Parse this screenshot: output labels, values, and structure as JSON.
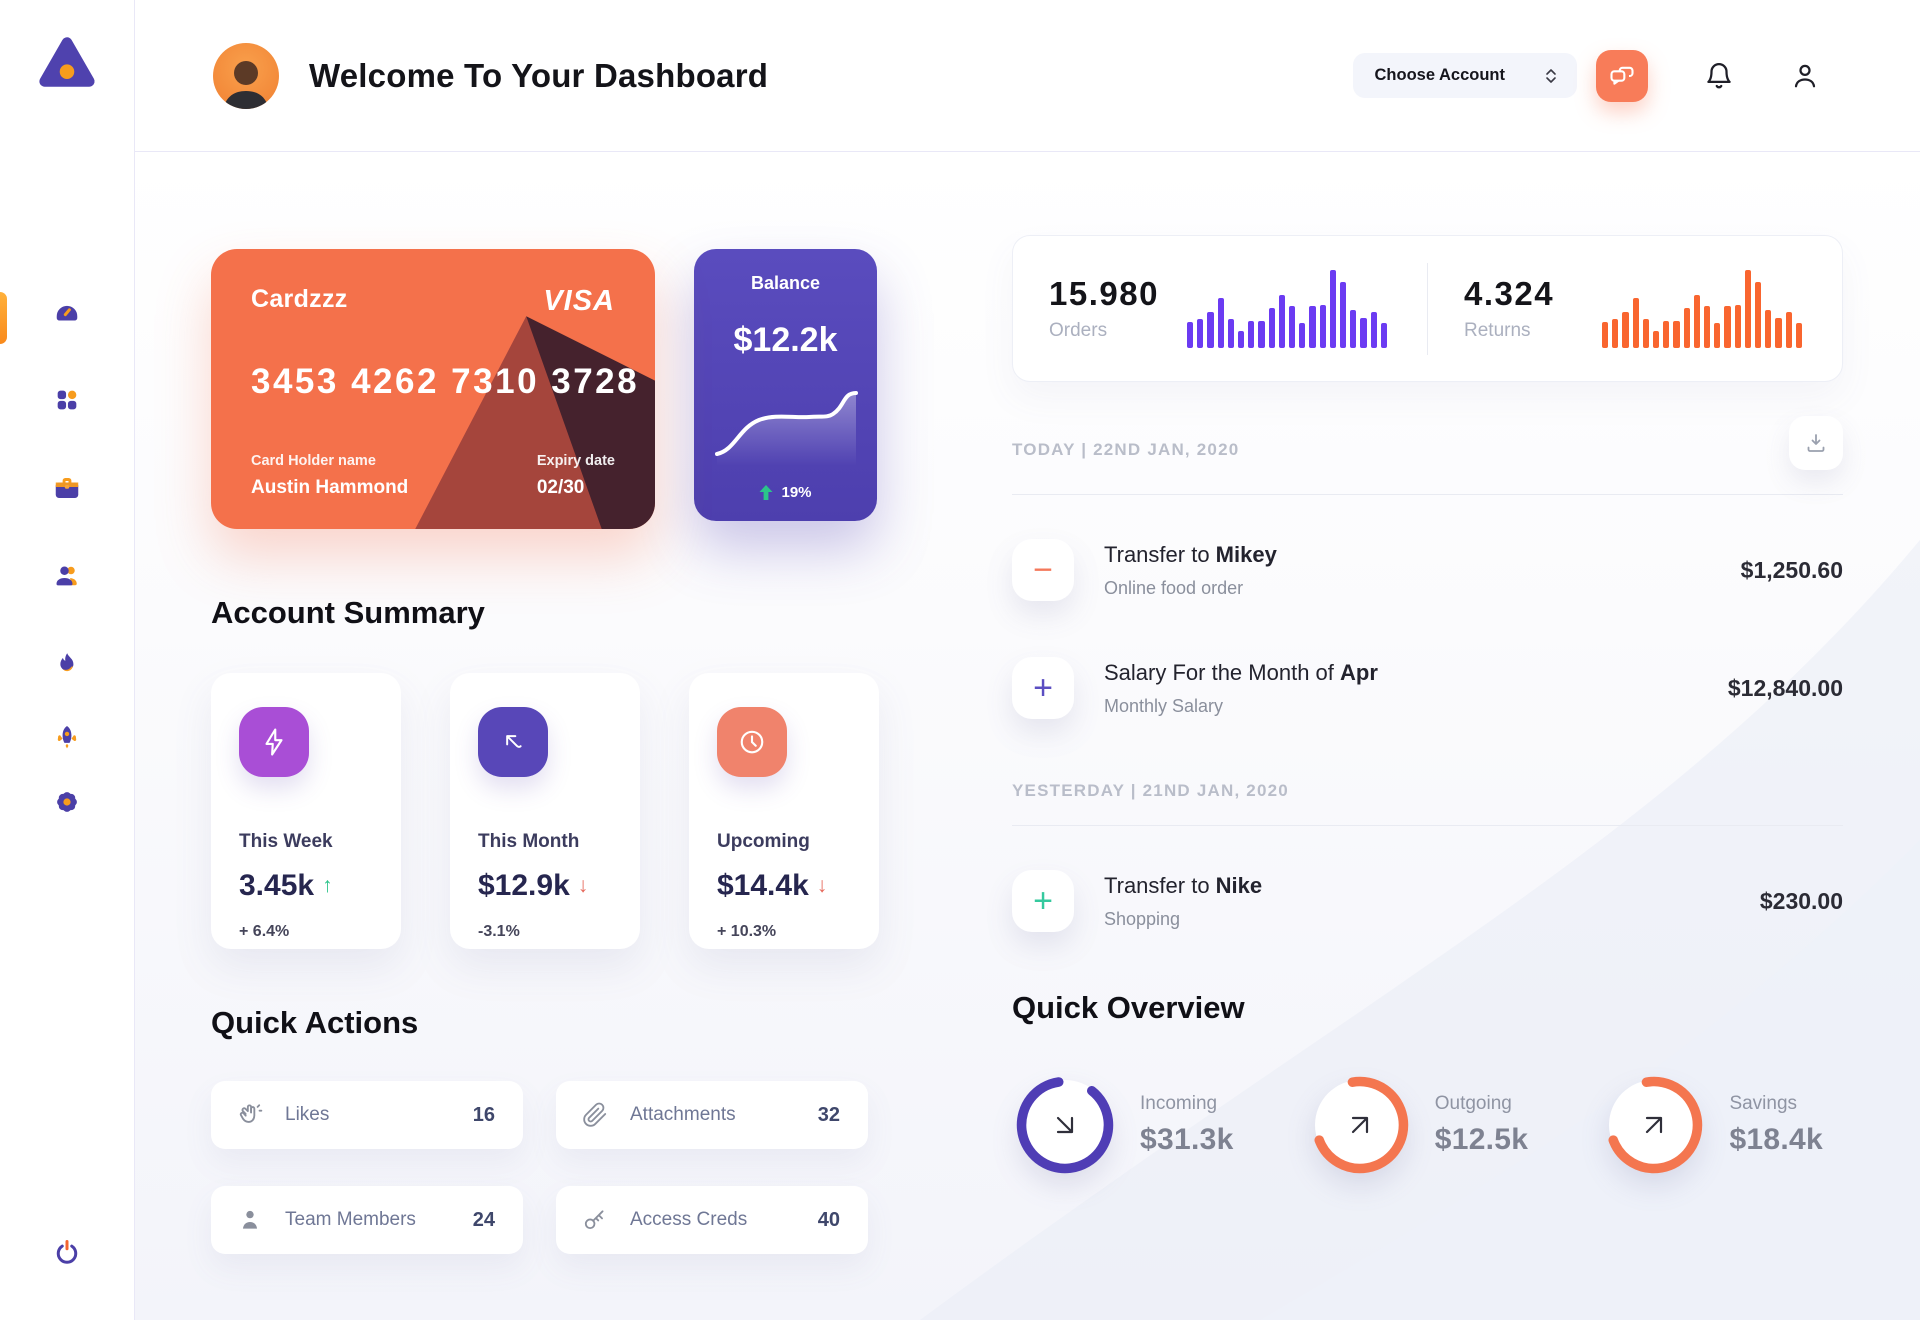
{
  "app": {
    "title": "Welcome To Your Dashboard"
  },
  "header": {
    "account_dropdown": "Choose Account"
  },
  "sidebar": {
    "items": [
      "dashboard",
      "apps",
      "briefcase",
      "users",
      "flame",
      "rocket",
      "settings"
    ],
    "bottom": "power"
  },
  "card": {
    "name": "Cardzzz",
    "brand": "VISA",
    "number": "3453 4262 7310 3728",
    "holder_label": "Card Holder name",
    "holder": "Austin Hammond",
    "expiry_label": "Expiry date",
    "expiry": "02/30"
  },
  "balance": {
    "label": "Balance",
    "value": "$12.2k",
    "change": "19%"
  },
  "account_summary": {
    "title": "Account Summary",
    "cards": [
      {
        "label": "This Week",
        "value": "3.45k",
        "trend_glyph": "↑",
        "trend_color": "#2BC48A",
        "change": "+ 6.4%",
        "icon": "lightning-icon",
        "icon_bg": "#A94ED6"
      },
      {
        "label": "This Month",
        "value": "$12.9k",
        "trend_glyph": "↓",
        "trend_color": "#E6695C",
        "change": "-3.1%",
        "icon": "arrow-up-left-icon",
        "icon_bg": "#5847B8"
      },
      {
        "label": "Upcoming",
        "value": "$14.4k",
        "trend_glyph": "↓",
        "trend_color": "#E6695C",
        "change": "+ 10.3%",
        "icon": "clock-icon",
        "icon_bg": "#F0836C"
      }
    ]
  },
  "quick_actions": {
    "title": "Quick Actions",
    "items": [
      {
        "label": "Likes",
        "count": "16",
        "icon": "clap-icon"
      },
      {
        "label": "Attachments",
        "count": "32",
        "icon": "paperclip-icon"
      },
      {
        "label": "Team Members",
        "count": "24",
        "icon": "person-icon"
      },
      {
        "label": "Access Creds",
        "count": "40",
        "icon": "key-icon"
      }
    ]
  },
  "stats": {
    "orders": {
      "value": "15.980",
      "label": "Orders"
    },
    "returns": {
      "value": "4.324",
      "label": "Returns"
    }
  },
  "chart_data": {
    "orders_bars": {
      "type": "bar",
      "values": [
        33,
        36,
        46,
        63,
        36,
        21,
        34,
        34,
        51,
        67,
        53,
        32,
        53,
        55,
        100,
        84,
        48,
        38,
        45,
        31
      ],
      "color": "#6B3BF2"
    },
    "returns_bars": {
      "type": "bar",
      "values": [
        33,
        36,
        46,
        63,
        36,
        21,
        34,
        34,
        51,
        67,
        53,
        32,
        53,
        55,
        100,
        84,
        48,
        38,
        45,
        31
      ],
      "color": "#F9652F"
    },
    "balance_sparkline": {
      "type": "line",
      "values": [
        10,
        13,
        22,
        38,
        48,
        52,
        53,
        53,
        55,
        62,
        78,
        80,
        72
      ],
      "color": "#FFFFFF"
    }
  },
  "transactions": {
    "today_header": "TODAY | 22ND JAN, 2020",
    "yesterday_header": "YESTERDAY | 21ND JAN, 2020",
    "today": [
      {
        "title_prefix": "Transfer to ",
        "title_bold": "Mikey",
        "subtitle": "Online food order",
        "amount": "$1,250.60",
        "sign_glyph": "−",
        "sign_color": "#F4785B"
      },
      {
        "title_prefix": "Salary For the Month of ",
        "title_bold": "Apr",
        "subtitle": "Monthly Salary",
        "amount": "$12,840.00",
        "sign_glyph": "+",
        "sign_color": "#5B4EC2"
      }
    ],
    "yesterday": [
      {
        "title_prefix": "Transfer to ",
        "title_bold": "Nike",
        "subtitle": "Shopping",
        "amount": "$230.00",
        "sign_glyph": "+",
        "sign_color": "#35C99E"
      }
    ]
  },
  "quick_overview": {
    "title": "Quick Overview",
    "items": [
      {
        "label": "Incoming",
        "value": "$31.3k",
        "percent": 87,
        "color": "#4F3DB5",
        "rotate": -52,
        "arrow_rotate": 180
      },
      {
        "label": "Outgoing",
        "value": "$12.5k",
        "percent": 72,
        "color": "#F4764F",
        "rotate": -100,
        "arrow_rotate": 0
      },
      {
        "label": "Savings",
        "value": "$18.4k",
        "percent": 72,
        "color": "#F4764F",
        "rotate": -100,
        "arrow_rotate": 0
      }
    ]
  }
}
